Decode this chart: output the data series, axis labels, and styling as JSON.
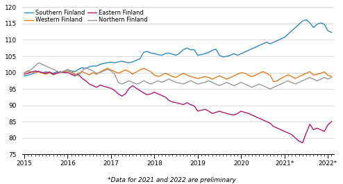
{
  "footnote": "*Data for 2021 and 2022 are preliminary",
  "ylim": [
    75,
    120
  ],
  "yticks": [
    75,
    80,
    85,
    90,
    95,
    100,
    105,
    110,
    115,
    120
  ],
  "x_tick_labels": [
    "2015",
    "2016",
    "2017",
    "2018",
    "2019",
    "2020",
    "2021*",
    "2022*"
  ],
  "legend": [
    {
      "label": "Southern Finland",
      "color": "#2e86c0"
    },
    {
      "label": "Western Finland",
      "color": "#e07b22"
    },
    {
      "label": "Eastern Finland",
      "color": "#b0186e"
    },
    {
      "label": "Northern Finland",
      "color": "#999999"
    }
  ],
  "southern_finland": [
    99.0,
    99.2,
    99.5,
    100.0,
    100.3,
    100.0,
    100.2,
    100.0,
    99.8,
    100.2,
    100.0,
    100.3,
    100.5,
    100.5,
    100.3,
    101.0,
    101.5,
    101.2,
    101.8,
    102.0,
    102.0,
    102.5,
    102.8,
    103.0,
    103.2,
    103.0,
    103.3,
    103.5,
    103.2,
    103.0,
    103.3,
    103.8,
    104.2,
    106.2,
    106.5,
    106.0,
    105.8,
    105.5,
    105.3,
    105.8,
    106.0,
    105.6,
    105.3,
    106.0,
    107.0,
    107.5,
    107.0,
    107.0,
    105.3,
    105.5,
    105.8,
    106.2,
    106.8,
    107.2,
    105.3,
    104.8,
    105.0,
    105.3,
    105.8,
    105.3,
    105.8,
    106.3,
    106.8,
    107.3,
    107.8,
    108.3,
    108.8,
    109.3,
    108.8,
    109.3,
    109.8,
    110.3,
    110.8,
    111.8,
    112.8,
    113.8,
    114.8,
    115.8,
    116.2,
    115.2,
    113.8,
    114.8,
    115.2,
    114.8,
    112.8,
    112.3
  ],
  "western_finland": [
    100.0,
    100.3,
    100.2,
    100.0,
    100.3,
    99.8,
    99.5,
    100.0,
    99.3,
    99.8,
    100.0,
    100.3,
    100.5,
    100.0,
    99.3,
    99.8,
    100.3,
    99.8,
    99.3,
    100.0,
    99.5,
    100.2,
    100.8,
    101.3,
    100.8,
    100.3,
    99.8,
    100.3,
    100.8,
    100.3,
    99.5,
    100.2,
    100.8,
    101.3,
    100.8,
    100.3,
    99.2,
    98.8,
    99.2,
    99.8,
    99.3,
    98.8,
    98.5,
    99.2,
    99.8,
    99.3,
    98.8,
    98.5,
    98.2,
    98.5,
    98.8,
    98.5,
    98.0,
    98.5,
    99.0,
    98.5,
    98.0,
    98.5,
    99.0,
    99.5,
    100.0,
    99.8,
    99.2,
    98.8,
    99.2,
    99.8,
    100.3,
    99.8,
    99.2,
    97.2,
    97.5,
    98.2,
    98.8,
    99.3,
    98.8,
    98.2,
    98.8,
    99.3,
    99.8,
    100.3,
    99.2,
    99.5,
    99.8,
    100.2,
    99.2,
    98.8
  ],
  "eastern_finland": [
    99.5,
    99.8,
    100.2,
    100.5,
    100.3,
    100.0,
    99.8,
    100.2,
    99.5,
    99.8,
    100.3,
    100.0,
    100.0,
    99.5,
    99.0,
    99.5,
    98.2,
    97.5,
    96.5,
    96.0,
    95.5,
    96.2,
    95.8,
    95.5,
    95.2,
    94.5,
    93.5,
    92.8,
    93.5,
    95.2,
    96.0,
    95.2,
    94.5,
    93.8,
    93.2,
    93.5,
    94.0,
    93.5,
    93.0,
    92.5,
    91.5,
    91.0,
    90.8,
    90.5,
    90.2,
    90.8,
    90.2,
    89.8,
    88.2,
    88.5,
    88.8,
    88.2,
    87.5,
    87.8,
    88.2,
    87.8,
    87.5,
    87.2,
    87.0,
    87.5,
    88.2,
    87.8,
    87.5,
    87.0,
    86.5,
    86.0,
    85.5,
    85.0,
    84.5,
    83.5,
    83.0,
    82.5,
    82.0,
    81.5,
    81.0,
    80.0,
    79.0,
    78.5,
    81.5,
    84.2,
    82.5,
    83.0,
    82.5,
    82.0,
    84.0,
    85.0
  ],
  "northern_finland": [
    100.0,
    100.5,
    101.0,
    102.0,
    103.0,
    102.5,
    102.0,
    101.5,
    101.0,
    100.5,
    100.0,
    100.5,
    101.0,
    100.5,
    99.5,
    99.0,
    100.5,
    101.5,
    101.0,
    100.5,
    99.8,
    100.0,
    100.5,
    101.0,
    100.5,
    99.5,
    97.0,
    96.5,
    97.0,
    97.5,
    97.0,
    96.5,
    96.8,
    97.5,
    97.0,
    96.5,
    97.0,
    97.5,
    97.0,
    97.5,
    98.0,
    97.5,
    97.0,
    96.8,
    96.5,
    97.0,
    97.5,
    97.0,
    96.5,
    96.8,
    97.0,
    97.5,
    97.0,
    96.5,
    96.0,
    96.5,
    97.0,
    96.5,
    96.0,
    96.5,
    97.0,
    96.5,
    96.0,
    95.5,
    96.0,
    96.5,
    96.0,
    95.5,
    95.0,
    95.5,
    96.0,
    96.5,
    97.0,
    97.5,
    97.0,
    96.5,
    97.0,
    97.5,
    98.0,
    98.5,
    98.0,
    97.5,
    98.0,
    98.5,
    98.0,
    98.5
  ]
}
